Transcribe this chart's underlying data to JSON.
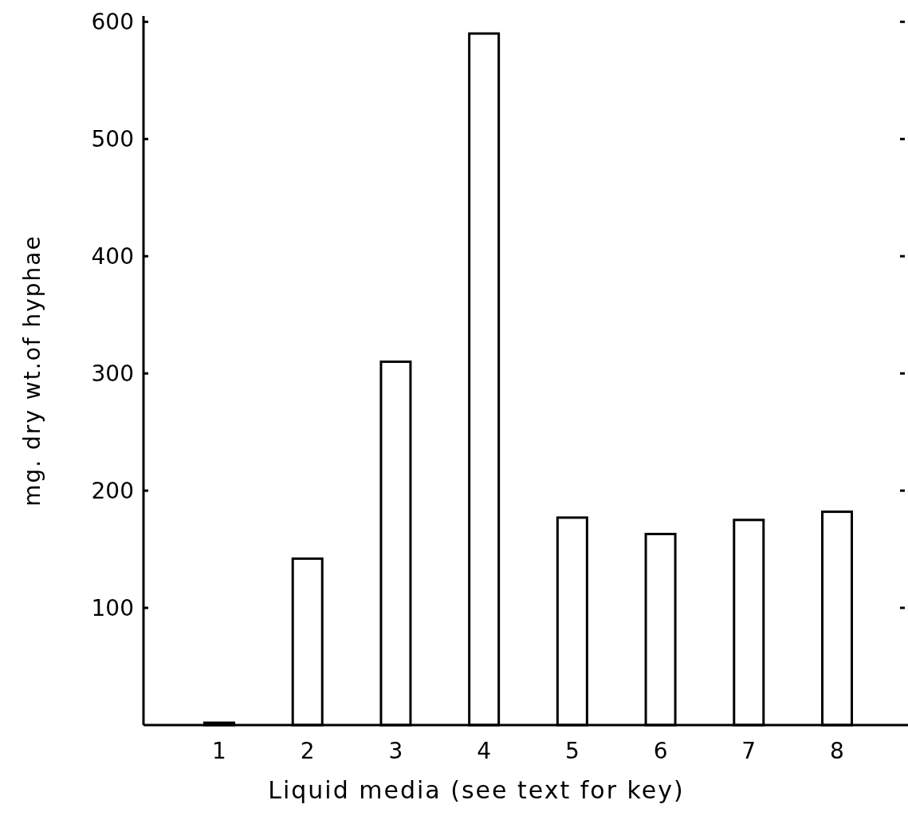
{
  "chart_data": {
    "type": "bar",
    "xlabel": "Liquid media (see text for key)",
    "ylabel": "mg. dry wt.of hyphae",
    "categories": [
      "1",
      "2",
      "3",
      "4",
      "5",
      "6",
      "7",
      "8"
    ],
    "values": [
      2,
      142,
      310,
      590,
      177,
      163,
      175,
      182
    ],
    "color": "#ffffff",
    "ylim": [
      0,
      605
    ],
    "yticks": [
      100,
      200,
      300,
      400,
      500,
      600
    ],
    "grid": false
  }
}
